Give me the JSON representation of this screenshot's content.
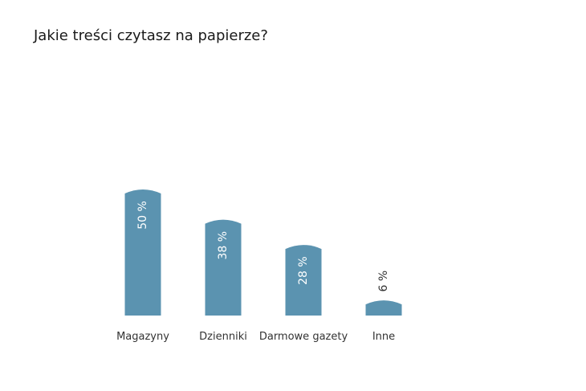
{
  "chart_data": {
    "type": "bar",
    "title": "Jakie treści czytasz na papierze?",
    "categories": [
      "Magazyny",
      "Dzienniki",
      "Darmowe gazety",
      "Inne"
    ],
    "values": [
      50,
      38,
      28,
      6
    ],
    "value_labels": [
      "50 %",
      "38 %",
      "28 %",
      "6 %"
    ],
    "xlabel": "",
    "ylabel": "",
    "ylim": [
      0,
      60
    ],
    "grid": false,
    "bar_color": "#5b93b0",
    "label_color_inside": "#ffffff",
    "label_color_outside": "#333333"
  }
}
